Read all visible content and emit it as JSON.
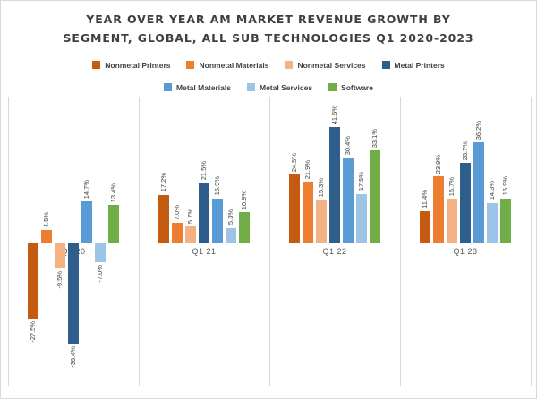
{
  "title": {
    "line1": "YEAR OVER YEAR AM MARKET REVENUE GROWTH BY",
    "line2": "SEGMENT, GLOBAL, ALL SUB TECHNOLOGIES Q1 2020-2023"
  },
  "chart_data": {
    "type": "bar",
    "title": "Year over year AM market revenue growth by segment, global, all sub technologies Q1 2020-2023",
    "categories": [
      "Q1 20",
      "Q1 21",
      "Q1 22",
      "Q1 23"
    ],
    "series": [
      {
        "name": "Nonmetal Printers",
        "color": "#C55A11",
        "values": [
          -27.5,
          17.2,
          24.5,
          11.4
        ]
      },
      {
        "name": "Nonmetal Materials",
        "color": "#ED7D31",
        "values": [
          4.5,
          7.0,
          21.9,
          23.9
        ]
      },
      {
        "name": "Nonmetal Services",
        "color": "#F4B183",
        "values": [
          -9.5,
          5.7,
          15.3,
          15.7
        ]
      },
      {
        "name": "Metal Printers",
        "color": "#2E5F8C",
        "values": [
          -36.4,
          21.5,
          41.6,
          28.7
        ]
      },
      {
        "name": "Metal Materials",
        "color": "#5B9BD5",
        "values": [
          14.7,
          15.9,
          30.4,
          36.2
        ]
      },
      {
        "name": "Metal Services",
        "color": "#9DC3E6",
        "values": [
          -7.0,
          5.3,
          17.5,
          14.3
        ]
      },
      {
        "name": "Software",
        "color": "#70AD47",
        "values": [
          13.4,
          10.9,
          33.1,
          15.9
        ]
      }
    ],
    "value_format": "0.0%",
    "data_labels": "rotated_vertical",
    "ylim": [
      -40,
      45
    ],
    "y_axis_visible": false,
    "gridlines": "vertical_category_separators",
    "legend_position": "top",
    "legend_rows": [
      [
        "Nonmetal Printers",
        "Nonmetal Materials",
        "Nonmetal Services",
        "Metal Printers"
      ],
      [
        "Metal Materials",
        "Metal Services",
        "Software"
      ]
    ]
  }
}
